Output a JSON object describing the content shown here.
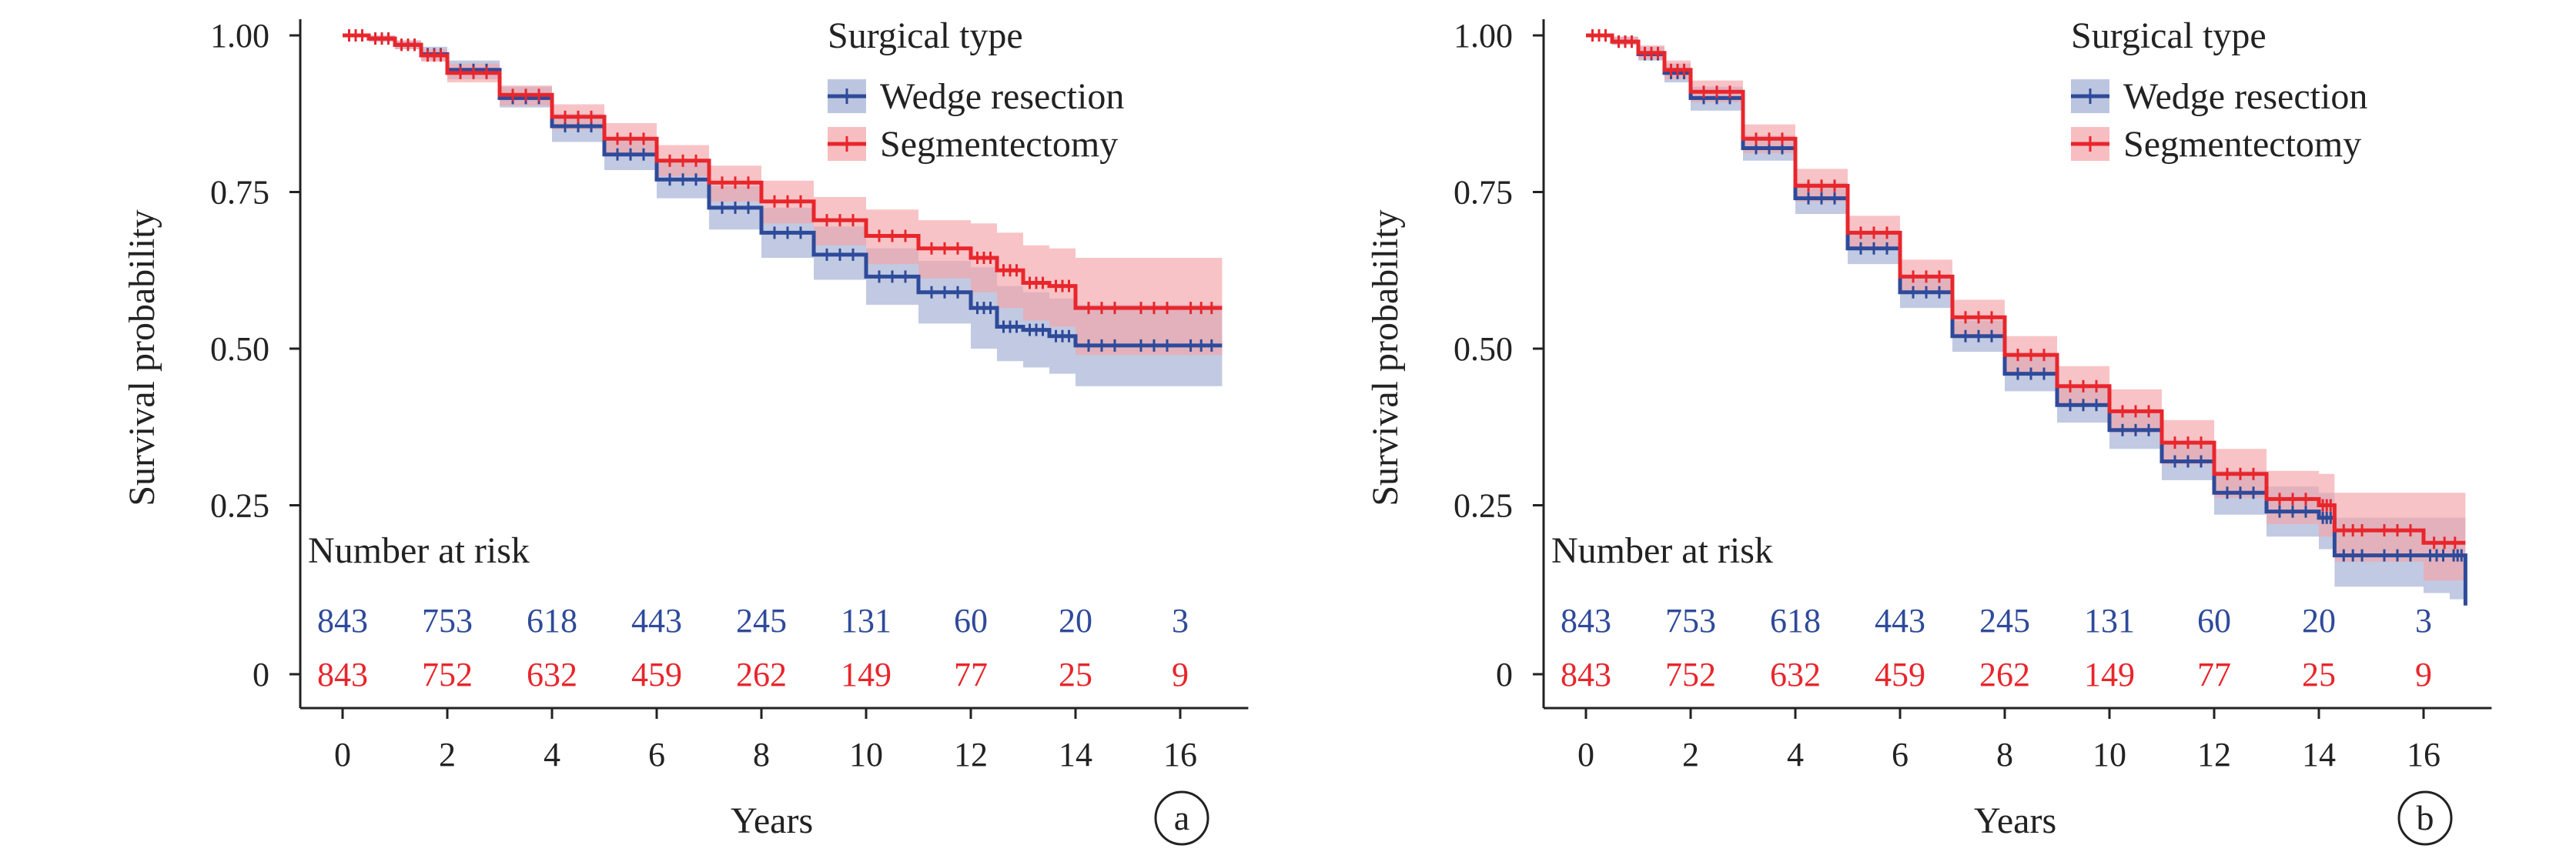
{
  "colors": {
    "wedge": "#2e4a9a",
    "segment": "#e8262c",
    "wedge_band": "#9fadd3",
    "segment_band": "#f4a3a8",
    "axis": "#222222"
  },
  "chart_data": [
    {
      "type": "line",
      "panel_label": "a",
      "xlabel": "Years",
      "ylabel": "Survival probability",
      "xlim": [
        0,
        17
      ],
      "ylim": [
        0,
        1
      ],
      "x_ticks": [
        0,
        2,
        4,
        6,
        8,
        10,
        12,
        14,
        16
      ],
      "x_tick_labels": [
        "0",
        "2",
        "4",
        "6",
        "8",
        "10",
        "12",
        "14",
        "16"
      ],
      "y_ticks": [
        0,
        0.25,
        0.5,
        0.75,
        1.0
      ],
      "y_tick_labels": [
        "0",
        "0.25",
        "0.50",
        "0.75",
        "1.00"
      ],
      "legend": {
        "title": "Surgical type",
        "position": "top-right",
        "entries": [
          "Wedge resection",
          "Segmentectomy"
        ]
      },
      "series": [
        {
          "name": "Wedge resection",
          "color_key": "wedge",
          "x": [
            0,
            0.5,
            1,
            1.5,
            2,
            3,
            4,
            5,
            6,
            7,
            8,
            9,
            10,
            11,
            12,
            12.5,
            13,
            13.5,
            14,
            15,
            16,
            16.8
          ],
          "y": [
            1.0,
            0.995,
            0.985,
            0.97,
            0.945,
            0.9,
            0.855,
            0.81,
            0.77,
            0.725,
            0.685,
            0.65,
            0.615,
            0.59,
            0.565,
            0.535,
            0.53,
            0.52,
            0.505,
            0.505,
            0.505,
            0.505
          ],
          "ci_lower": [
            1.0,
            0.99,
            0.978,
            0.96,
            0.93,
            0.885,
            0.83,
            0.785,
            0.74,
            0.69,
            0.645,
            0.61,
            0.57,
            0.54,
            0.5,
            0.48,
            0.47,
            0.46,
            0.44,
            0.44,
            0.44,
            0.44
          ],
          "ci_upper": [
            1.0,
            1.0,
            0.992,
            0.982,
            0.96,
            0.918,
            0.875,
            0.835,
            0.8,
            0.76,
            0.725,
            0.695,
            0.66,
            0.64,
            0.63,
            0.6,
            0.59,
            0.58,
            0.57,
            0.57,
            0.57,
            0.57
          ]
        },
        {
          "name": "Segmentectomy",
          "color_key": "segment",
          "x": [
            0,
            0.5,
            1,
            1.5,
            2,
            3,
            4,
            5,
            6,
            7,
            8,
            9,
            10,
            11,
            12,
            12.5,
            13,
            13.5,
            14,
            15,
            16,
            16.8
          ],
          "y": [
            1.0,
            0.995,
            0.985,
            0.968,
            0.94,
            0.905,
            0.87,
            0.835,
            0.8,
            0.765,
            0.735,
            0.705,
            0.68,
            0.66,
            0.645,
            0.625,
            0.605,
            0.6,
            0.565,
            0.565,
            0.565,
            0.565
          ],
          "ci_lower": [
            1.0,
            0.99,
            0.978,
            0.958,
            0.925,
            0.888,
            0.85,
            0.812,
            0.775,
            0.735,
            0.7,
            0.665,
            0.635,
            0.612,
            0.59,
            0.565,
            0.545,
            0.535,
            0.49,
            0.49,
            0.49,
            0.49
          ],
          "ci_upper": [
            1.0,
            1.0,
            0.992,
            0.978,
            0.955,
            0.92,
            0.89,
            0.86,
            0.825,
            0.792,
            0.768,
            0.742,
            0.722,
            0.705,
            0.7,
            0.685,
            0.665,
            0.66,
            0.645,
            0.645,
            0.645,
            0.645
          ]
        }
      ],
      "risk_table": {
        "title": "Number at risk",
        "times": [
          0,
          2,
          4,
          6,
          8,
          10,
          12,
          14,
          16
        ],
        "rows": [
          {
            "name": "Wedge resection",
            "color_key": "wedge",
            "values": [
              "843",
              "753",
              "618",
              "443",
              "245",
              "131",
              "60",
              "20",
              "3"
            ]
          },
          {
            "name": "Segmentectomy",
            "color_key": "segment",
            "values": [
              "843",
              "752",
              "632",
              "459",
              "262",
              "149",
              "77",
              "25",
              "9"
            ]
          }
        ]
      }
    },
    {
      "type": "line",
      "panel_label": "b",
      "xlabel": "Years",
      "ylabel": "Survival probability",
      "xlim": [
        0,
        17
      ],
      "ylim": [
        0,
        1
      ],
      "x_ticks": [
        0,
        2,
        4,
        6,
        8,
        10,
        12,
        14,
        16
      ],
      "x_tick_labels": [
        "0",
        "2",
        "4",
        "6",
        "8",
        "10",
        "12",
        "14",
        "16"
      ],
      "y_ticks": [
        0,
        0.25,
        0.5,
        0.75,
        1.0
      ],
      "y_tick_labels": [
        "0",
        "0.25",
        "0.50",
        "0.75",
        "1.00"
      ],
      "legend": {
        "title": "Surgical type",
        "position": "top-right",
        "entries": [
          "Wedge resection",
          "Segmentectomy"
        ]
      },
      "series": [
        {
          "name": "Wedge resection",
          "color_key": "wedge",
          "x": [
            0,
            0.5,
            1,
            1.5,
            2,
            3,
            4,
            5,
            6,
            7,
            8,
            9,
            10,
            11,
            12,
            13,
            14,
            14.3,
            15,
            16,
            16.5,
            16.8
          ],
          "y": [
            1.0,
            0.99,
            0.97,
            0.94,
            0.9,
            0.82,
            0.74,
            0.66,
            0.59,
            0.52,
            0.46,
            0.41,
            0.37,
            0.32,
            0.27,
            0.24,
            0.23,
            0.17,
            0.17,
            0.17,
            0.17,
            0.09
          ],
          "ci_lower": [
            1.0,
            0.985,
            0.96,
            0.925,
            0.88,
            0.8,
            0.715,
            0.635,
            0.565,
            0.495,
            0.432,
            0.382,
            0.34,
            0.29,
            0.235,
            0.2,
            0.18,
            0.12,
            0.12,
            0.11,
            0.1,
            0.06
          ],
          "ci_upper": [
            1.0,
            0.998,
            0.982,
            0.955,
            0.918,
            0.84,
            0.765,
            0.685,
            0.615,
            0.545,
            0.488,
            0.438,
            0.4,
            0.352,
            0.305,
            0.28,
            0.27,
            0.23,
            0.23,
            0.23,
            0.23,
            0.14
          ]
        },
        {
          "name": "Segmentectomy",
          "color_key": "segment",
          "x": [
            0,
            0.5,
            1,
            1.5,
            2,
            3,
            4,
            5,
            6,
            7,
            8,
            9,
            10,
            11,
            12,
            13,
            14,
            14.3,
            15,
            16,
            16.8
          ],
          "y": [
            1.0,
            0.99,
            0.972,
            0.945,
            0.91,
            0.835,
            0.76,
            0.685,
            0.615,
            0.55,
            0.49,
            0.44,
            0.4,
            0.35,
            0.3,
            0.26,
            0.25,
            0.21,
            0.21,
            0.19,
            0.19
          ],
          "ci_lower": [
            1.0,
            0.985,
            0.962,
            0.93,
            0.893,
            0.812,
            0.735,
            0.66,
            0.588,
            0.522,
            0.46,
            0.41,
            0.366,
            0.315,
            0.262,
            0.22,
            0.2,
            0.16,
            0.16,
            0.13,
            0.13
          ],
          "ci_upper": [
            1.0,
            0.998,
            0.984,
            0.96,
            0.928,
            0.858,
            0.787,
            0.712,
            0.642,
            0.578,
            0.52,
            0.472,
            0.435,
            0.386,
            0.34,
            0.305,
            0.3,
            0.27,
            0.27,
            0.27,
            0.27
          ]
        }
      ],
      "risk_table": {
        "title": "Number at risk",
        "times": [
          0,
          2,
          4,
          6,
          8,
          10,
          12,
          14,
          16
        ],
        "rows": [
          {
            "name": "Wedge resection",
            "color_key": "wedge",
            "values": [
              "843",
              "753",
              "618",
              "443",
              "245",
              "131",
              "60",
              "20",
              "3"
            ]
          },
          {
            "name": "Segmentectomy",
            "color_key": "segment",
            "values": [
              "843",
              "752",
              "632",
              "459",
              "262",
              "149",
              "77",
              "25",
              "9"
            ]
          }
        ]
      }
    }
  ]
}
